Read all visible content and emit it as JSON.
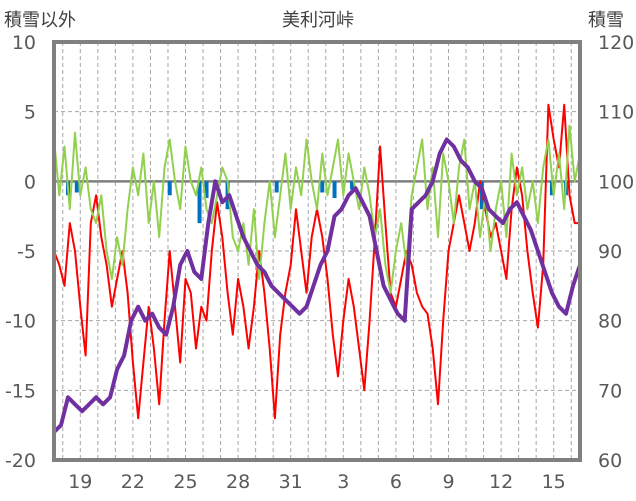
{
  "chart_data": {
    "type": "line",
    "title": "美利河峠",
    "ylabel_left": "積雪以外",
    "ylabel_right": "積雪",
    "ylim_left": [
      -20,
      10
    ],
    "ylim_right": [
      60,
      120
    ],
    "yticks_left": [
      "10",
      "5",
      "0",
      "-5",
      "-10",
      "-15",
      "-20"
    ],
    "yticks_right": [
      "120",
      "110",
      "100",
      "90",
      "80",
      "70",
      "60"
    ],
    "x_ticks": [
      "19",
      "22",
      "25",
      "28",
      "31",
      "3",
      "6",
      "9",
      "12",
      "15"
    ],
    "x_range_days": [
      0,
      30
    ],
    "x_tick_days": [
      1.5,
      4.5,
      7.5,
      10.5,
      13.5,
      16.5,
      19.5,
      22.5,
      25.5,
      28.5
    ],
    "series": [
      {
        "key": "temperature",
        "color": "#ff0000",
        "axis": "left",
        "points": [
          [
            0.0,
            -5
          ],
          [
            0.3,
            -6
          ],
          [
            0.6,
            -7.5
          ],
          [
            0.9,
            -3
          ],
          [
            1.2,
            -5
          ],
          [
            1.5,
            -9
          ],
          [
            1.8,
            -12.5
          ],
          [
            2.1,
            -3
          ],
          [
            2.4,
            -1
          ],
          [
            2.7,
            -4
          ],
          [
            3.0,
            -6
          ],
          [
            3.3,
            -9
          ],
          [
            3.6,
            -7
          ],
          [
            3.9,
            -5
          ],
          [
            4.2,
            -8
          ],
          [
            4.5,
            -13
          ],
          [
            4.8,
            -17
          ],
          [
            5.1,
            -13
          ],
          [
            5.4,
            -9
          ],
          [
            5.7,
            -12
          ],
          [
            6.0,
            -16
          ],
          [
            6.3,
            -10
          ],
          [
            6.6,
            -5
          ],
          [
            6.9,
            -9
          ],
          [
            7.2,
            -13
          ],
          [
            7.5,
            -7
          ],
          [
            7.8,
            -8
          ],
          [
            8.1,
            -12
          ],
          [
            8.4,
            -9
          ],
          [
            8.7,
            -10
          ],
          [
            9.0,
            -5
          ],
          [
            9.3,
            -1.5
          ],
          [
            9.6,
            -4
          ],
          [
            9.9,
            -8
          ],
          [
            10.2,
            -11
          ],
          [
            10.5,
            -7
          ],
          [
            10.8,
            -9
          ],
          [
            11.1,
            -12
          ],
          [
            11.4,
            -9
          ],
          [
            11.7,
            -5
          ],
          [
            12.0,
            -8
          ],
          [
            12.3,
            -12
          ],
          [
            12.6,
            -17
          ],
          [
            12.9,
            -11
          ],
          [
            13.2,
            -8
          ],
          [
            13.5,
            -6
          ],
          [
            13.8,
            -2
          ],
          [
            14.1,
            -5
          ],
          [
            14.4,
            -8
          ],
          [
            14.7,
            -4
          ],
          [
            15.0,
            -2
          ],
          [
            15.3,
            -4
          ],
          [
            15.6,
            -7
          ],
          [
            15.9,
            -11
          ],
          [
            16.2,
            -14
          ],
          [
            16.5,
            -10
          ],
          [
            16.8,
            -7
          ],
          [
            17.1,
            -9
          ],
          [
            17.4,
            -12
          ],
          [
            17.7,
            -15
          ],
          [
            18.0,
            -10
          ],
          [
            18.3,
            -4
          ],
          [
            18.6,
            2.5
          ],
          [
            18.9,
            -3
          ],
          [
            19.2,
            -8
          ],
          [
            19.5,
            -9
          ],
          [
            19.8,
            -7
          ],
          [
            20.1,
            -5
          ],
          [
            20.4,
            -6
          ],
          [
            20.7,
            -8
          ],
          [
            21.0,
            -9
          ],
          [
            21.3,
            -9.5
          ],
          [
            21.6,
            -12
          ],
          [
            21.9,
            -16
          ],
          [
            22.2,
            -10
          ],
          [
            22.5,
            -5
          ],
          [
            22.8,
            -3
          ],
          [
            23.1,
            -1
          ],
          [
            23.4,
            -3
          ],
          [
            23.7,
            -5
          ],
          [
            24.0,
            -3
          ],
          [
            24.3,
            0
          ],
          [
            24.6,
            -2
          ],
          [
            24.9,
            -4
          ],
          [
            25.2,
            -3
          ],
          [
            25.5,
            -5
          ],
          [
            25.8,
            -7
          ],
          [
            26.1,
            -2
          ],
          [
            26.4,
            1
          ],
          [
            26.7,
            -1
          ],
          [
            27.0,
            -5
          ],
          [
            27.3,
            -8
          ],
          [
            27.6,
            -10.5
          ],
          [
            27.9,
            -6
          ],
          [
            28.2,
            5.5
          ],
          [
            28.5,
            3
          ],
          [
            28.8,
            1
          ],
          [
            29.1,
            5.5
          ],
          [
            29.4,
            -1
          ],
          [
            29.7,
            -3
          ],
          [
            30.0,
            -3
          ]
        ]
      },
      {
        "key": "wind",
        "color": "#92d050",
        "axis": "left",
        "points": [
          [
            0.0,
            3
          ],
          [
            0.3,
            -1
          ],
          [
            0.6,
            2.5
          ],
          [
            0.9,
            -2
          ],
          [
            1.2,
            3.5
          ],
          [
            1.5,
            -1
          ],
          [
            1.8,
            1
          ],
          [
            2.1,
            -2
          ],
          [
            2.4,
            -3
          ],
          [
            2.7,
            -1
          ],
          [
            3.0,
            -5
          ],
          [
            3.3,
            -7
          ],
          [
            3.6,
            -4
          ],
          [
            3.9,
            -6
          ],
          [
            4.2,
            -2
          ],
          [
            4.5,
            1
          ],
          [
            4.8,
            -1
          ],
          [
            5.1,
            2
          ],
          [
            5.4,
            -3
          ],
          [
            5.7,
            0
          ],
          [
            6.0,
            -4
          ],
          [
            6.3,
            1
          ],
          [
            6.6,
            3
          ],
          [
            6.9,
            0
          ],
          [
            7.2,
            -2
          ],
          [
            7.5,
            2.5
          ],
          [
            7.8,
            0
          ],
          [
            8.1,
            -1
          ],
          [
            8.4,
            1
          ],
          [
            8.7,
            -2
          ],
          [
            9.0,
            -3
          ],
          [
            9.3,
            -1
          ],
          [
            9.6,
            1
          ],
          [
            9.9,
            0
          ],
          [
            10.2,
            -4
          ],
          [
            10.5,
            -5
          ],
          [
            10.8,
            -3
          ],
          [
            11.1,
            -6
          ],
          [
            11.4,
            -2
          ],
          [
            11.7,
            -7
          ],
          [
            12.0,
            -3
          ],
          [
            12.3,
            0
          ],
          [
            12.6,
            -4
          ],
          [
            12.9,
            -1
          ],
          [
            13.2,
            2
          ],
          [
            13.5,
            -2
          ],
          [
            13.8,
            1
          ],
          [
            14.1,
            -1
          ],
          [
            14.4,
            3
          ],
          [
            14.7,
            0
          ],
          [
            15.0,
            -2
          ],
          [
            15.3,
            2
          ],
          [
            15.6,
            -1
          ],
          [
            15.9,
            1
          ],
          [
            16.2,
            3
          ],
          [
            16.5,
            -1
          ],
          [
            16.8,
            2
          ],
          [
            17.1,
            0
          ],
          [
            17.4,
            -2
          ],
          [
            17.7,
            1
          ],
          [
            18.0,
            -1
          ],
          [
            18.3,
            -4
          ],
          [
            18.6,
            -2
          ],
          [
            18.9,
            -6
          ],
          [
            19.2,
            -8
          ],
          [
            19.5,
            -5
          ],
          [
            19.8,
            -3
          ],
          [
            20.1,
            -6
          ],
          [
            20.4,
            -1
          ],
          [
            20.7,
            1
          ],
          [
            21.0,
            3
          ],
          [
            21.3,
            -2
          ],
          [
            21.6,
            1
          ],
          [
            21.9,
            -4
          ],
          [
            22.2,
            2
          ],
          [
            22.5,
            0
          ],
          [
            22.8,
            -3
          ],
          [
            23.1,
            1
          ],
          [
            23.4,
            3
          ],
          [
            23.7,
            -2
          ],
          [
            24.0,
            0
          ],
          [
            24.3,
            -4
          ],
          [
            24.6,
            -1
          ],
          [
            24.9,
            -5
          ],
          [
            25.2,
            -2
          ],
          [
            25.5,
            0
          ],
          [
            25.8,
            -4
          ],
          [
            26.1,
            2
          ],
          [
            26.4,
            -1
          ],
          [
            26.7,
            1
          ],
          [
            27.0,
            -2
          ],
          [
            27.3,
            0
          ],
          [
            27.6,
            -3
          ],
          [
            27.9,
            1
          ],
          [
            28.2,
            3
          ],
          [
            28.5,
            -1
          ],
          [
            28.8,
            2
          ],
          [
            29.1,
            -2
          ],
          [
            29.4,
            4
          ],
          [
            29.7,
            0
          ],
          [
            30.0,
            2
          ]
        ]
      },
      {
        "key": "precip",
        "color": "#0070c0",
        "axis": "left",
        "type": "bar",
        "points": [
          [
            0.8,
            -1
          ],
          [
            1.3,
            -0.8
          ],
          [
            6.6,
            -1.0
          ],
          [
            8.3,
            -3.0
          ],
          [
            8.7,
            -1.2
          ],
          [
            9.9,
            -2.0
          ],
          [
            12.7,
            -0.8
          ],
          [
            15.3,
            -0.8
          ],
          [
            16.0,
            -1.2
          ],
          [
            17.0,
            -0.6
          ],
          [
            24.4,
            -2.0
          ],
          [
            28.4,
            -1.0
          ],
          [
            29.2,
            -1.0
          ]
        ]
      },
      {
        "key": "snow",
        "color": "#7030a0",
        "axis": "right",
        "points": [
          [
            0.0,
            64
          ],
          [
            0.4,
            65
          ],
          [
            0.8,
            69
          ],
          [
            1.2,
            68
          ],
          [
            1.6,
            67
          ],
          [
            2.0,
            68
          ],
          [
            2.4,
            69
          ],
          [
            2.8,
            68
          ],
          [
            3.2,
            69
          ],
          [
            3.6,
            73
          ],
          [
            4.0,
            75
          ],
          [
            4.4,
            80
          ],
          [
            4.8,
            82
          ],
          [
            5.2,
            80
          ],
          [
            5.6,
            81
          ],
          [
            6.0,
            79
          ],
          [
            6.4,
            78
          ],
          [
            6.8,
            82
          ],
          [
            7.2,
            88
          ],
          [
            7.6,
            90
          ],
          [
            8.0,
            87
          ],
          [
            8.4,
            86
          ],
          [
            8.8,
            94
          ],
          [
            9.2,
            100
          ],
          [
            9.6,
            97
          ],
          [
            10.0,
            98
          ],
          [
            10.4,
            95
          ],
          [
            10.8,
            92
          ],
          [
            11.2,
            90
          ],
          [
            11.6,
            88
          ],
          [
            12.0,
            87
          ],
          [
            12.4,
            85
          ],
          [
            12.8,
            84
          ],
          [
            13.2,
            83
          ],
          [
            13.6,
            82
          ],
          [
            14.0,
            81
          ],
          [
            14.4,
            82
          ],
          [
            14.8,
            85
          ],
          [
            15.2,
            88
          ],
          [
            15.6,
            90
          ],
          [
            16.0,
            95
          ],
          [
            16.4,
            96
          ],
          [
            16.8,
            98
          ],
          [
            17.2,
            99
          ],
          [
            17.6,
            97
          ],
          [
            18.0,
            95
          ],
          [
            18.4,
            90
          ],
          [
            18.8,
            85
          ],
          [
            19.2,
            83
          ],
          [
            19.6,
            81
          ],
          [
            20.0,
            80
          ],
          [
            20.4,
            96
          ],
          [
            20.8,
            97
          ],
          [
            21.2,
            98
          ],
          [
            21.6,
            100
          ],
          [
            22.0,
            104
          ],
          [
            22.4,
            106
          ],
          [
            22.8,
            105
          ],
          [
            23.2,
            103
          ],
          [
            23.6,
            102
          ],
          [
            24.0,
            100
          ],
          [
            24.4,
            99
          ],
          [
            24.8,
            96
          ],
          [
            25.2,
            95
          ],
          [
            25.6,
            94
          ],
          [
            26.0,
            96
          ],
          [
            26.4,
            97
          ],
          [
            26.8,
            95
          ],
          [
            27.2,
            93
          ],
          [
            27.6,
            90
          ],
          [
            28.0,
            87
          ],
          [
            28.4,
            84
          ],
          [
            28.8,
            82
          ],
          [
            29.2,
            81
          ],
          [
            29.6,
            85
          ],
          [
            30.0,
            88
          ]
        ]
      }
    ]
  }
}
